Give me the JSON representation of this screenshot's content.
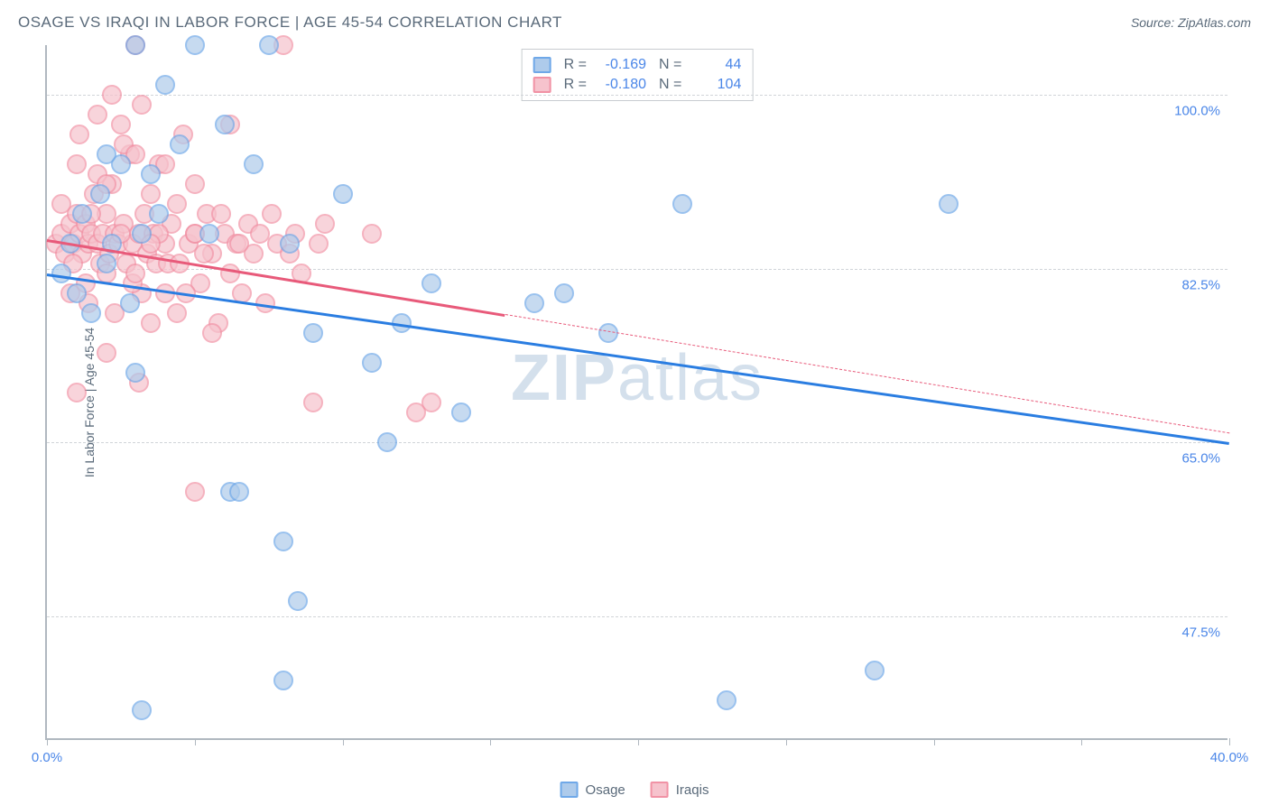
{
  "title": "OSAGE VS IRAQI IN LABOR FORCE | AGE 45-54 CORRELATION CHART",
  "source": "Source: ZipAtlas.com",
  "watermark_bold": "ZIP",
  "watermark_light": "atlas",
  "chart": {
    "type": "scatter",
    "background_color": "#ffffff",
    "grid_color": "#d0d4d8",
    "axis_color": "#b0b8c0",
    "tick_label_color": "#4a86e8",
    "xlim": [
      0,
      40
    ],
    "ylim": [
      35,
      105
    ],
    "x_ticks": [
      0,
      5,
      10,
      15,
      20,
      25,
      30,
      35,
      40
    ],
    "x_tick_labels": {
      "0": "0.0%",
      "40": "40.0%"
    },
    "y_gridlines": [
      47.5,
      65.0,
      82.5,
      100.0
    ],
    "y_tick_labels": [
      "47.5%",
      "65.0%",
      "82.5%",
      "100.0%"
    ],
    "y_axis_label": "In Labor Force | Age 45-54",
    "marker_radius": 11,
    "marker_opacity": 0.7,
    "trend_line_width": 3
  },
  "series": [
    {
      "name": "Osage",
      "fill_color": "#aecbeb",
      "stroke_color": "#6fa8e8",
      "line_color": "#2a7de1",
      "R": "-0.169",
      "N": "44",
      "trend": {
        "x1": 0,
        "y1": 82.0,
        "x2": 40,
        "y2": 65.0,
        "dashed_from_x": null
      },
      "points": [
        [
          0.5,
          82
        ],
        [
          0.8,
          85
        ],
        [
          1.0,
          80
        ],
        [
          1.2,
          88
        ],
        [
          1.5,
          78
        ],
        [
          1.8,
          90
        ],
        [
          2.0,
          83
        ],
        [
          2.2,
          85
        ],
        [
          2.5,
          93
        ],
        [
          2.8,
          79
        ],
        [
          3.0,
          105
        ],
        [
          3.2,
          86
        ],
        [
          3.5,
          92
        ],
        [
          3.8,
          88
        ],
        [
          4.0,
          101
        ],
        [
          4.5,
          95
        ],
        [
          5.0,
          105
        ],
        [
          5.5,
          86
        ],
        [
          6.0,
          97
        ],
        [
          6.2,
          60
        ],
        [
          6.5,
          60
        ],
        [
          7.0,
          93
        ],
        [
          7.5,
          105
        ],
        [
          8.0,
          55
        ],
        [
          8.2,
          85
        ],
        [
          8.5,
          49
        ],
        [
          9.0,
          76
        ],
        [
          10.0,
          90
        ],
        [
          11.0,
          73
        ],
        [
          11.5,
          65
        ],
        [
          12.0,
          77
        ],
        [
          13.0,
          81
        ],
        [
          14.0,
          68
        ],
        [
          16.5,
          79
        ],
        [
          17.5,
          80
        ],
        [
          19.0,
          76
        ],
        [
          21.5,
          89
        ],
        [
          23.0,
          39
        ],
        [
          28.0,
          42
        ],
        [
          30.5,
          89
        ],
        [
          3.2,
          38
        ],
        [
          8.0,
          41
        ],
        [
          3.0,
          72
        ],
        [
          2.0,
          94
        ]
      ]
    },
    {
      "name": "Iraqis",
      "fill_color": "#f6c3cd",
      "stroke_color": "#f192a5",
      "line_color": "#e85a7a",
      "R": "-0.180",
      "N": "104",
      "trend": {
        "x1": 0,
        "y1": 85.5,
        "x2": 40,
        "y2": 66.0,
        "dashed_from_x": 15.5
      },
      "points": [
        [
          0.3,
          85
        ],
        [
          0.5,
          86
        ],
        [
          0.6,
          84
        ],
        [
          0.8,
          87
        ],
        [
          0.9,
          85
        ],
        [
          1.0,
          88
        ],
        [
          1.1,
          86
        ],
        [
          1.2,
          84
        ],
        [
          1.3,
          87
        ],
        [
          1.4,
          85
        ],
        [
          1.5,
          86
        ],
        [
          1.6,
          90
        ],
        [
          1.7,
          85
        ],
        [
          1.8,
          83
        ],
        [
          1.9,
          86
        ],
        [
          2.0,
          88
        ],
        [
          2.1,
          84
        ],
        [
          2.2,
          91
        ],
        [
          2.3,
          86
        ],
        [
          2.4,
          85
        ],
        [
          2.5,
          97
        ],
        [
          2.6,
          87
        ],
        [
          2.7,
          83
        ],
        [
          2.8,
          94
        ],
        [
          2.9,
          85
        ],
        [
          3.0,
          105
        ],
        [
          3.1,
          86
        ],
        [
          3.2,
          80
        ],
        [
          3.3,
          88
        ],
        [
          3.4,
          84
        ],
        [
          3.5,
          90
        ],
        [
          3.6,
          86
        ],
        [
          3.7,
          83
        ],
        [
          3.8,
          93
        ],
        [
          4.0,
          85
        ],
        [
          4.2,
          87
        ],
        [
          4.4,
          78
        ],
        [
          4.6,
          96
        ],
        [
          4.8,
          85
        ],
        [
          5.0,
          86
        ],
        [
          5.2,
          81
        ],
        [
          5.4,
          88
        ],
        [
          5.6,
          84
        ],
        [
          5.8,
          77
        ],
        [
          6.0,
          86
        ],
        [
          6.2,
          97
        ],
        [
          6.4,
          85
        ],
        [
          6.6,
          80
        ],
        [
          6.8,
          87
        ],
        [
          7.0,
          84
        ],
        [
          7.2,
          86
        ],
        [
          7.4,
          79
        ],
        [
          7.6,
          88
        ],
        [
          7.8,
          85
        ],
        [
          8.0,
          105
        ],
        [
          8.2,
          84
        ],
        [
          8.4,
          86
        ],
        [
          8.6,
          82
        ],
        [
          9.0,
          69
        ],
        [
          9.2,
          85
        ],
        [
          9.4,
          87
        ],
        [
          11.0,
          86
        ],
        [
          12.5,
          68
        ],
        [
          13.0,
          69
        ],
        [
          0.8,
          80
        ],
        [
          1.1,
          96
        ],
        [
          1.4,
          79
        ],
        [
          1.7,
          92
        ],
        [
          2.0,
          82
        ],
        [
          2.3,
          78
        ],
        [
          2.6,
          95
        ],
        [
          2.9,
          81
        ],
        [
          3.2,
          99
        ],
        [
          3.5,
          77
        ],
        [
          3.8,
          86
        ],
        [
          4.1,
          83
        ],
        [
          4.4,
          89
        ],
        [
          4.7,
          80
        ],
        [
          5.0,
          91
        ],
        [
          5.3,
          84
        ],
        [
          5.6,
          76
        ],
        [
          5.9,
          88
        ],
        [
          6.2,
          82
        ],
        [
          6.5,
          85
        ],
        [
          1.0,
          70
        ],
        [
          1.5,
          88
        ],
        [
          2.0,
          74
        ],
        [
          2.5,
          86
        ],
        [
          3.0,
          82
        ],
        [
          3.5,
          85
        ],
        [
          4.0,
          80
        ],
        [
          4.5,
          83
        ],
        [
          5.0,
          86
        ],
        [
          5.0,
          60
        ],
        [
          2.2,
          100
        ],
        [
          3.0,
          94
        ],
        [
          1.7,
          98
        ],
        [
          4.0,
          93
        ],
        [
          2.0,
          91
        ],
        [
          1.0,
          93
        ],
        [
          0.5,
          89
        ],
        [
          1.3,
          81
        ],
        [
          0.9,
          83
        ],
        [
          3.1,
          71
        ]
      ]
    }
  ],
  "bottom_legend": [
    "Osage",
    "Iraqis"
  ]
}
